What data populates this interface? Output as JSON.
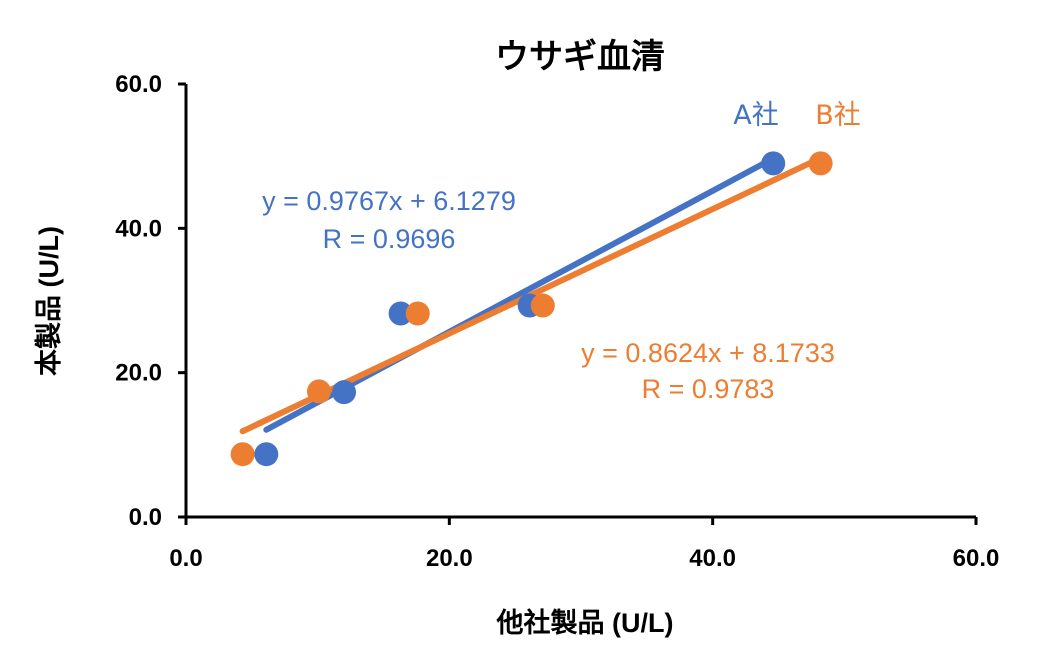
{
  "chart_data": {
    "type": "scatter",
    "title": "ウサギ血清",
    "xlabel": "他社製品 (U/L)",
    "ylabel": "本製品 (U/L)",
    "xlim": [
      0,
      60
    ],
    "ylim": [
      0,
      60
    ],
    "xticks": [
      "0.0",
      "20.0",
      "40.0",
      "60.0"
    ],
    "yticks": [
      "0.0",
      "20.0",
      "40.0",
      "60.0"
    ],
    "grid": false,
    "series": [
      {
        "name": "A社",
        "color": "#4472C4",
        "points": [
          {
            "x": 6.1,
            "y": 8.7
          },
          {
            "x": 12.0,
            "y": 17.3
          },
          {
            "x": 16.3,
            "y": 28.2
          },
          {
            "x": 26.1,
            "y": 29.3
          },
          {
            "x": 44.6,
            "y": 49.0
          }
        ],
        "trendline": {
          "slope": 0.9767,
          "intercept": 6.1279,
          "x_range": [
            6.1,
            44.6
          ]
        },
        "equation": "y = 0.9767x + 6.1279",
        "r_label": "R = 0.9696"
      },
      {
        "name": "B社",
        "color": "#ED7D31",
        "points": [
          {
            "x": 4.3,
            "y": 8.7
          },
          {
            "x": 10.1,
            "y": 17.4
          },
          {
            "x": 17.6,
            "y": 28.2
          },
          {
            "x": 27.1,
            "y": 29.3
          },
          {
            "x": 48.2,
            "y": 49.0
          }
        ],
        "trendline": {
          "slope": 0.8624,
          "intercept": 8.1733,
          "x_range": [
            4.3,
            48.2
          ]
        },
        "equation": "y = 0.8624x + 8.1733",
        "r_label": "R = 0.9783"
      }
    ]
  }
}
